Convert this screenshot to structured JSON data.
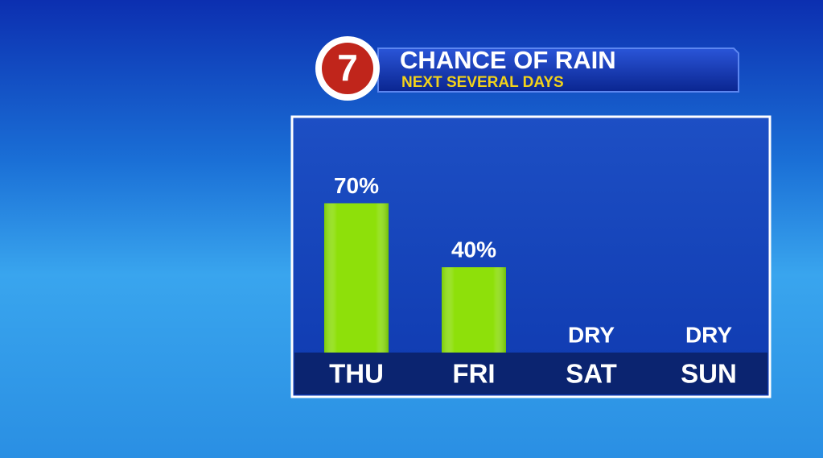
{
  "logo": "7",
  "chart_data": {
    "type": "bar",
    "title": "CHANCE OF RAIN",
    "subtitle": "NEXT SEVERAL DAYS",
    "categories": [
      "THU",
      "FRI",
      "SAT",
      "SUN"
    ],
    "values": [
      70,
      40,
      0,
      0
    ],
    "value_labels": [
      "70%",
      "40%",
      "DRY",
      "DRY"
    ],
    "color": "#8ee00a"
  }
}
